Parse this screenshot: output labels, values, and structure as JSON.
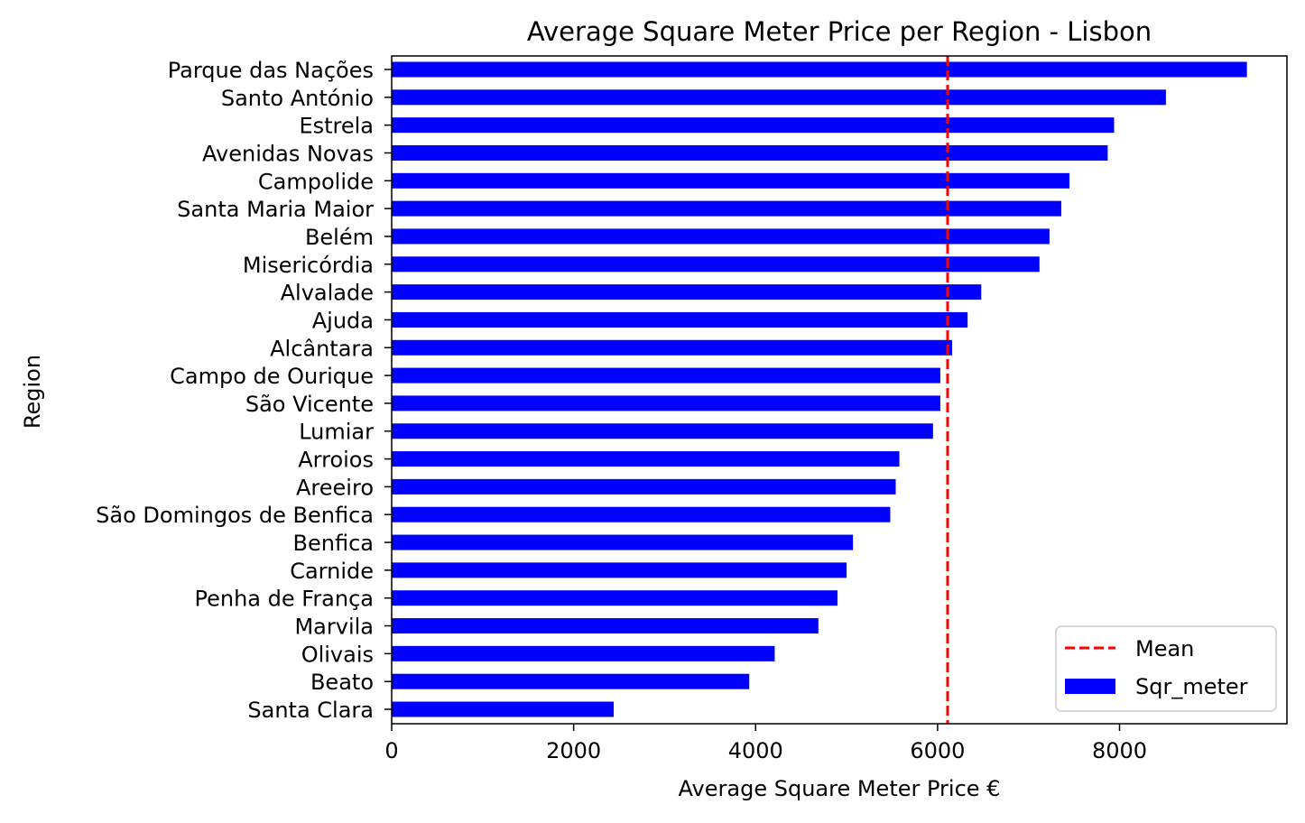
{
  "chart_data": {
    "type": "bar",
    "orientation": "horizontal",
    "title": "Average Square Meter Price per Region - Lisbon",
    "xlabel": "Average Square Meter Price €",
    "ylabel": "Region",
    "xlim": [
      0,
      9840
    ],
    "xticks": [
      0,
      2000,
      4000,
      6000,
      8000
    ],
    "grid": false,
    "legend_position": "bottom-right",
    "categories": [
      "Parque das Nações",
      "Santo António",
      "Estrela",
      "Avenidas Novas",
      "Campolide",
      "Santa Maria Maior",
      "Belém",
      "Misericórdia",
      "Alvalade",
      "Ajuda",
      "Alcântara",
      "Campo de Ourique",
      "São Vicente",
      "Lumiar",
      "Arroios",
      "Areeiro",
      "São Domingos de Benfica",
      "Benfica",
      "Carnide",
      "Penha de França",
      "Marvila",
      "Olivais",
      "Beato",
      "Santa Clara"
    ],
    "series": [
      {
        "name": "Sqr_meter",
        "color": "#0000ff",
        "values": [
          9400,
          8510,
          7940,
          7870,
          7450,
          7360,
          7230,
          7120,
          6480,
          6330,
          6160,
          6030,
          6030,
          5950,
          5580,
          5540,
          5480,
          5070,
          5000,
          4900,
          4690,
          4210,
          3930,
          2440
        ]
      }
    ],
    "mean_line": {
      "name": "Mean",
      "value": 6110,
      "color": "#ff0000",
      "style": "dashed"
    }
  }
}
